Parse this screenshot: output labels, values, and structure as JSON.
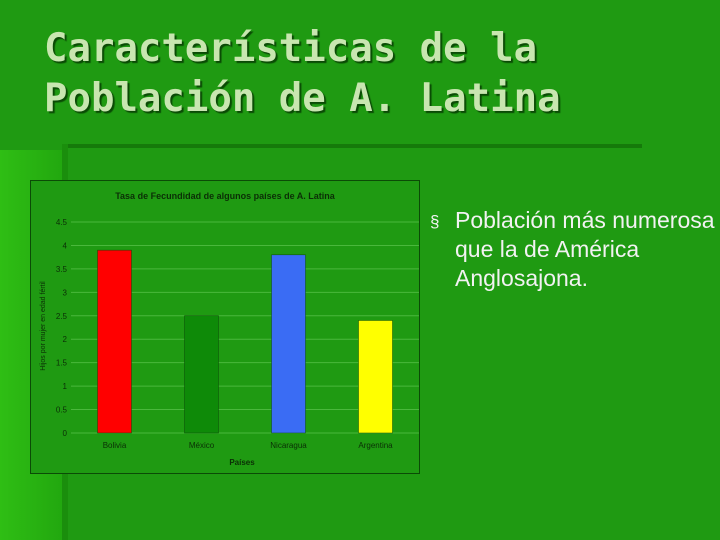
{
  "slide": {
    "title_lines": [
      "Características de la",
      "Población de A. Latina"
    ],
    "bullets": [
      {
        "marker": "§",
        "text": "Población más numerosa que la de América Anglosajona."
      }
    ]
  },
  "colors": {
    "background": "#1f9a12",
    "gridline": "#4ab83c",
    "chart_text": "#0b2f06",
    "bars": [
      "#ff0000",
      "#0e8a08",
      "#3a6cf4",
      "#ffff00"
    ]
  },
  "chart_data": {
    "type": "bar",
    "title": "Tasa de Fecundidad de algunos países de A. Latina",
    "xlabel": "Países",
    "ylabel": "Hijos por mujer en edad fértil",
    "categories": [
      "Bolivia",
      "México",
      "Nicaragua",
      "Argentina"
    ],
    "values": [
      3.9,
      2.5,
      3.8,
      2.4
    ],
    "ylim": [
      0,
      4.5
    ],
    "yticks": [
      "0",
      "0.5",
      "1",
      "1.5",
      "2",
      "2.5",
      "3",
      "3.5",
      "4",
      "4.5"
    ],
    "grid": true,
    "legend": "none"
  }
}
